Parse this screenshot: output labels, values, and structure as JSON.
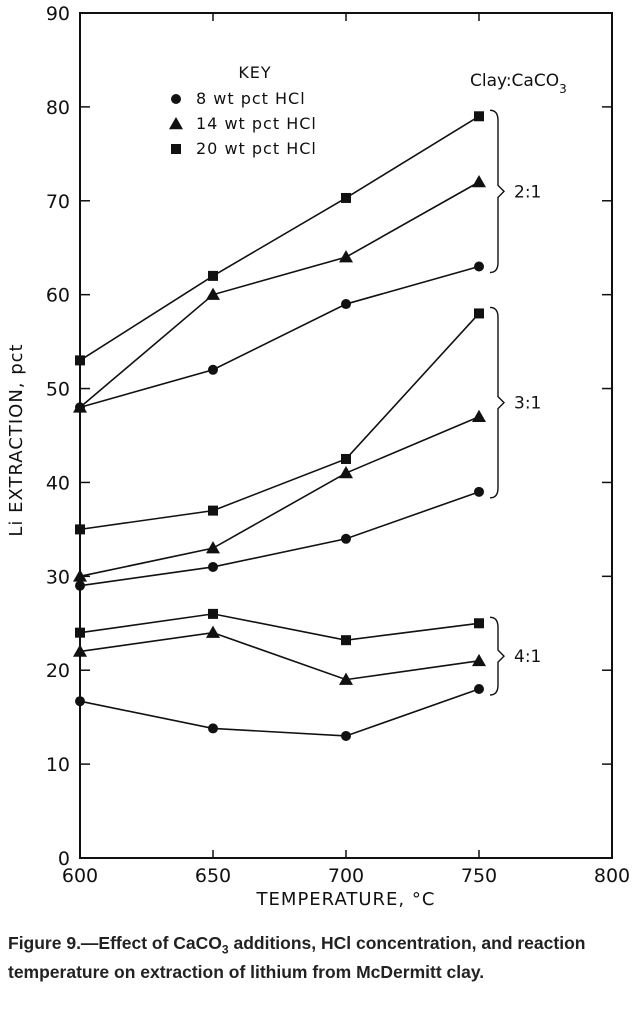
{
  "chart_data": {
    "type": "line",
    "xlabel": "TEMPERATURE, °C",
    "ylabel": "Li EXTRACTION, pct",
    "xlim": [
      600,
      800
    ],
    "ylim": [
      0,
      90
    ],
    "xticks": [
      600,
      650,
      700,
      750,
      800
    ],
    "yticks": [
      0,
      10,
      20,
      30,
      40,
      50,
      60,
      70,
      80,
      90
    ],
    "x": [
      600,
      650,
      700,
      750
    ],
    "key_title": "KEY",
    "group_header": "Clay:CaCO3",
    "legend": [
      {
        "label": "8 wt pct HCl",
        "marker": "circle"
      },
      {
        "label": "14 wt pct HCl",
        "marker": "triangle"
      },
      {
        "label": "20 wt pct HCl",
        "marker": "square"
      }
    ],
    "groups": [
      {
        "label": "2:1",
        "series": [
          {
            "marker": "circle",
            "values": [
              48,
              52,
              59,
              63
            ]
          },
          {
            "marker": "triangle",
            "values": [
              48,
              60,
              64,
              72
            ]
          },
          {
            "marker": "square",
            "values": [
              53,
              62,
              70.3,
              79
            ]
          }
        ]
      },
      {
        "label": "3:1",
        "series": [
          {
            "marker": "circle",
            "values": [
              29,
              31,
              34,
              39
            ]
          },
          {
            "marker": "triangle",
            "values": [
              30,
              33,
              41,
              47
            ]
          },
          {
            "marker": "square",
            "values": [
              35,
              37,
              42.5,
              58
            ]
          }
        ]
      },
      {
        "label": "4:1",
        "series": [
          {
            "marker": "circle",
            "values": [
              16.7,
              13.8,
              13,
              18
            ]
          },
          {
            "marker": "triangle",
            "values": [
              22,
              24,
              19,
              21
            ]
          },
          {
            "marker": "square",
            "values": [
              24,
              26,
              23.2,
              25
            ]
          }
        ]
      }
    ]
  },
  "caption": "Figure 9.—Effect of CaCO3 additions, HCl concentration, and reaction temperature on extraction of lithium from McDermitt clay."
}
